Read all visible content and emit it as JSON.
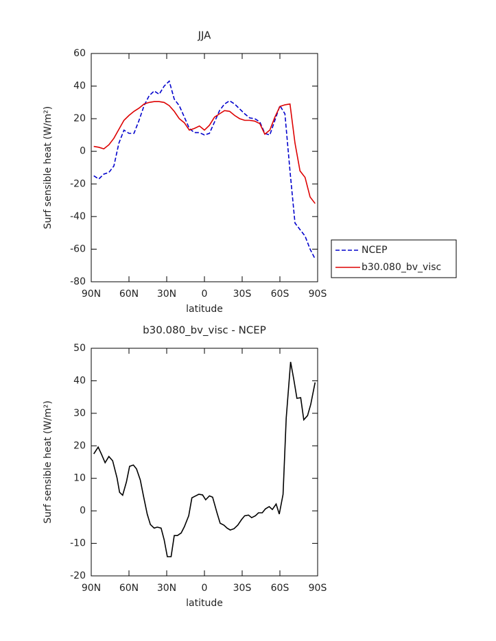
{
  "charts": [
    {
      "type": "line",
      "title": "JJA",
      "xlabel": "latitude",
      "ylabel": "Surf sensible heat (W/m²)",
      "xlim": [
        90,
        -90
      ],
      "ylim": [
        -80,
        60
      ],
      "xticks": [
        {
          "value": 90,
          "label": "90N"
        },
        {
          "value": 60,
          "label": "60N"
        },
        {
          "value": 30,
          "label": "30N"
        },
        0,
        {
          "value": -30,
          "label": "30S"
        },
        {
          "value": -60,
          "label": "60S"
        },
        {
          "value": -90,
          "label": "90S"
        }
      ],
      "yticks": [
        -80,
        -60,
        -40,
        -20,
        0,
        20,
        40,
        60
      ],
      "legend": "right",
      "x": [
        88,
        84,
        80,
        76,
        72,
        68,
        64,
        60,
        56,
        52,
        48,
        44,
        40,
        36,
        32,
        28,
        24,
        20,
        16,
        12,
        8,
        4,
        0,
        -4,
        -8,
        -12,
        -16,
        -20,
        -24,
        -28,
        -32,
        -36,
        -40,
        -44,
        -48,
        -52,
        -56,
        -60,
        -64,
        -68,
        -72,
        -76,
        -80,
        -84,
        -88
      ],
      "series": [
        {
          "name": "NCEP",
          "color": "#0000cc",
          "line_style": "dashed",
          "values": [
            -15,
            -17,
            -14,
            -13,
            -9,
            5,
            13,
            11,
            11,
            19,
            28,
            34,
            37,
            35,
            40,
            43,
            32,
            28,
            21,
            14,
            11.5,
            11.5,
            10,
            11,
            18,
            25,
            29,
            31,
            29,
            26,
            23,
            20.5,
            20,
            18,
            11,
            10,
            19,
            28,
            23,
            -12,
            -44,
            -48,
            -52,
            -60,
            -66
          ]
        },
        {
          "name": "b30.080_bv_visc",
          "color": "#dd0000",
          "line_style": "solid",
          "values": [
            3,
            2.5,
            1.5,
            4,
            8,
            13.5,
            19,
            22,
            24.5,
            26.5,
            29,
            30,
            30.5,
            30.5,
            30,
            28,
            24.5,
            20,
            17.5,
            13,
            14,
            15.5,
            13,
            16,
            21,
            23,
            25,
            24.5,
            22,
            20,
            19,
            19,
            18.5,
            17,
            10.5,
            13,
            21,
            27.5,
            28.5,
            29,
            5,
            -12,
            -16,
            -28,
            -32
          ]
        }
      ]
    },
    {
      "type": "line",
      "title": "b30.080_bv_visc - NCEP",
      "xlabel": "latitude",
      "ylabel": "Surf sensible heat (W/m²)",
      "xlim": [
        90,
        -90
      ],
      "ylim": [
        -20,
        50
      ],
      "xticks": [
        {
          "value": 90,
          "label": "90N"
        },
        {
          "value": 60,
          "label": "60N"
        },
        {
          "value": 30,
          "label": "30N"
        },
        0,
        {
          "value": -30,
          "label": "30S"
        },
        {
          "value": -60,
          "label": "60S"
        },
        {
          "value": -90,
          "label": "90S"
        }
      ],
      "yticks": [
        -20,
        -10,
        0,
        10,
        20,
        30,
        40,
        50
      ],
      "x": [
        88,
        84.5,
        82,
        79,
        76,
        73,
        69.5,
        67.5,
        65,
        62,
        59.5,
        56.5,
        54,
        51,
        48.5,
        45.5,
        43,
        40,
        37.5,
        34.5,
        32,
        29.5,
        26.5,
        24,
        21.5,
        18.5,
        16,
        12.5,
        10,
        7,
        4.5,
        1.5,
        -1,
        -4,
        -6.5,
        -10,
        -12.5,
        -15.5,
        -18,
        -20.5,
        -23.5,
        -26.5,
        -29.5,
        -32,
        -35,
        -37.5,
        -40.5,
        -43,
        -46,
        -48.5,
        -51.5,
        -54,
        -57,
        -59.5,
        -62.5,
        -65,
        -68.5,
        -71,
        -73.5,
        -76.5,
        -79,
        -82,
        -84.5,
        -88
      ],
      "series": [
        {
          "color": "#000000",
          "line_style": "solid",
          "values": [
            17.5,
            19.6,
            17.5,
            14.8,
            16.7,
            15.4,
            10.1,
            5.7,
            4.8,
            8.9,
            13.7,
            14.1,
            12.9,
            9.5,
            4.6,
            -1,
            -4.2,
            -5.3,
            -5,
            -5.3,
            -8.9,
            -14.1,
            -14.1,
            -7.6,
            -7.6,
            -6.8,
            -4.9,
            -1.5,
            4,
            4.6,
            5.1,
            4.9,
            3.4,
            4.6,
            4.2,
            -0.6,
            -3.8,
            -4.4,
            -5.3,
            -5.9,
            -5.5,
            -4.4,
            -2.7,
            -1.5,
            -1.3,
            -2.1,
            -1.5,
            -0.6,
            -0.6,
            0.6,
            1.3,
            0.4,
            2.1,
            -1,
            5.1,
            28.5,
            45.8,
            40.5,
            34.6,
            34.8,
            28,
            29.3,
            32.7,
            39.5
          ]
        }
      ]
    }
  ]
}
